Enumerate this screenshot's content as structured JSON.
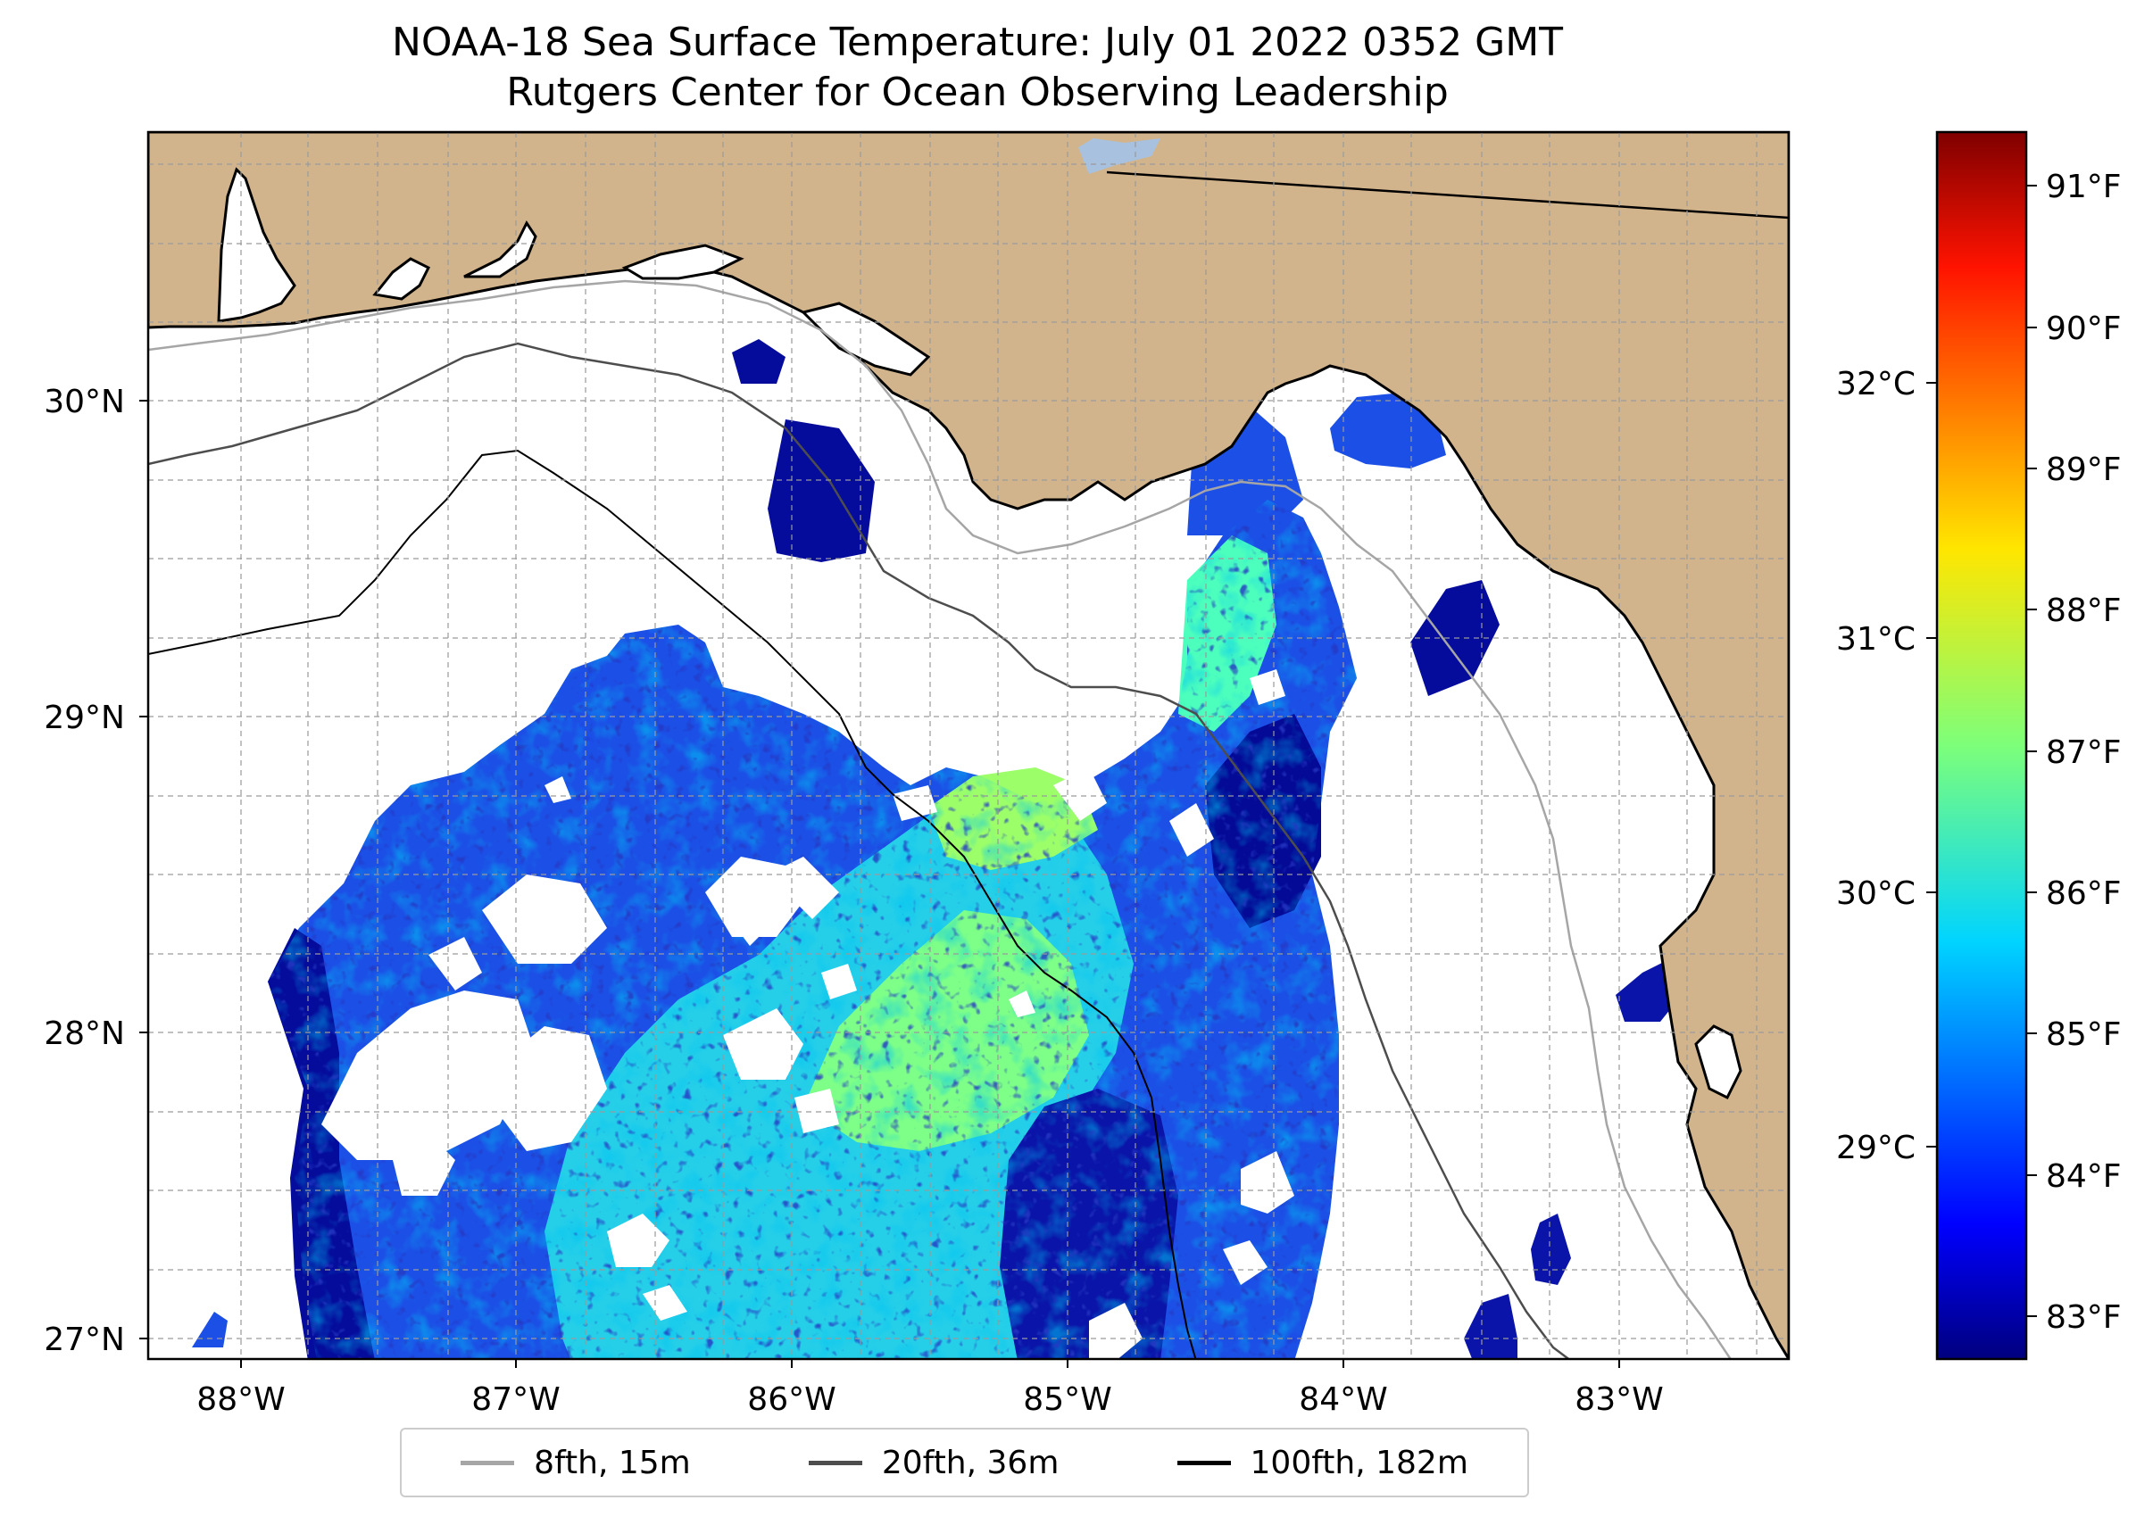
{
  "title": {
    "line1": "NOAA-18 Sea Surface Temperature: July 01 2022 0352 GMT",
    "line2": "Rutgers Center for Ocean Observing Leadership"
  },
  "map": {
    "lon_range": [
      -88.34,
      -82.39
    ],
    "lat_range": [
      26.94,
      30.85
    ],
    "lon_ticks": [
      {
        "value": -88,
        "label": "88°W"
      },
      {
        "value": -87,
        "label": "87°W"
      },
      {
        "value": -86,
        "label": "86°W"
      },
      {
        "value": -85,
        "label": "85°W"
      },
      {
        "value": -84,
        "label": "84°W"
      },
      {
        "value": -83,
        "label": "83°W"
      }
    ],
    "lat_ticks": [
      {
        "value": 27,
        "label": "27°N"
      },
      {
        "value": 28,
        "label": "28°N"
      },
      {
        "value": 29,
        "label": "29°N"
      },
      {
        "value": 30,
        "label": "30°N"
      }
    ],
    "land_color": "#d2b48c",
    "missing_color": "#ffffff",
    "gridlines": "dashed"
  },
  "colorbar": {
    "colormap": "jet",
    "range_f": [
      82.7,
      91.4
    ],
    "f_ticks": [
      {
        "value": 83,
        "label": "83°F"
      },
      {
        "value": 84,
        "label": "84°F"
      },
      {
        "value": 85,
        "label": "85°F"
      },
      {
        "value": 86,
        "label": "86°F"
      },
      {
        "value": 87,
        "label": "87°F"
      },
      {
        "value": 88,
        "label": "88°F"
      },
      {
        "value": 89,
        "label": "89°F"
      },
      {
        "value": 90,
        "label": "90°F"
      },
      {
        "value": 91,
        "label": "91°F"
      }
    ],
    "c_ticks": [
      {
        "value": 29,
        "label": "29°C"
      },
      {
        "value": 30,
        "label": "30°C"
      },
      {
        "value": 31,
        "label": "31°C"
      },
      {
        "value": 32,
        "label": "32°C"
      }
    ]
  },
  "legend": {
    "items": [
      {
        "label": "8fth, 15m",
        "color": "#a6a6a6"
      },
      {
        "label": "20fth, 36m",
        "color": "#4d4d4d"
      },
      {
        "label": "100fth, 182m",
        "color": "#000000"
      }
    ]
  }
}
